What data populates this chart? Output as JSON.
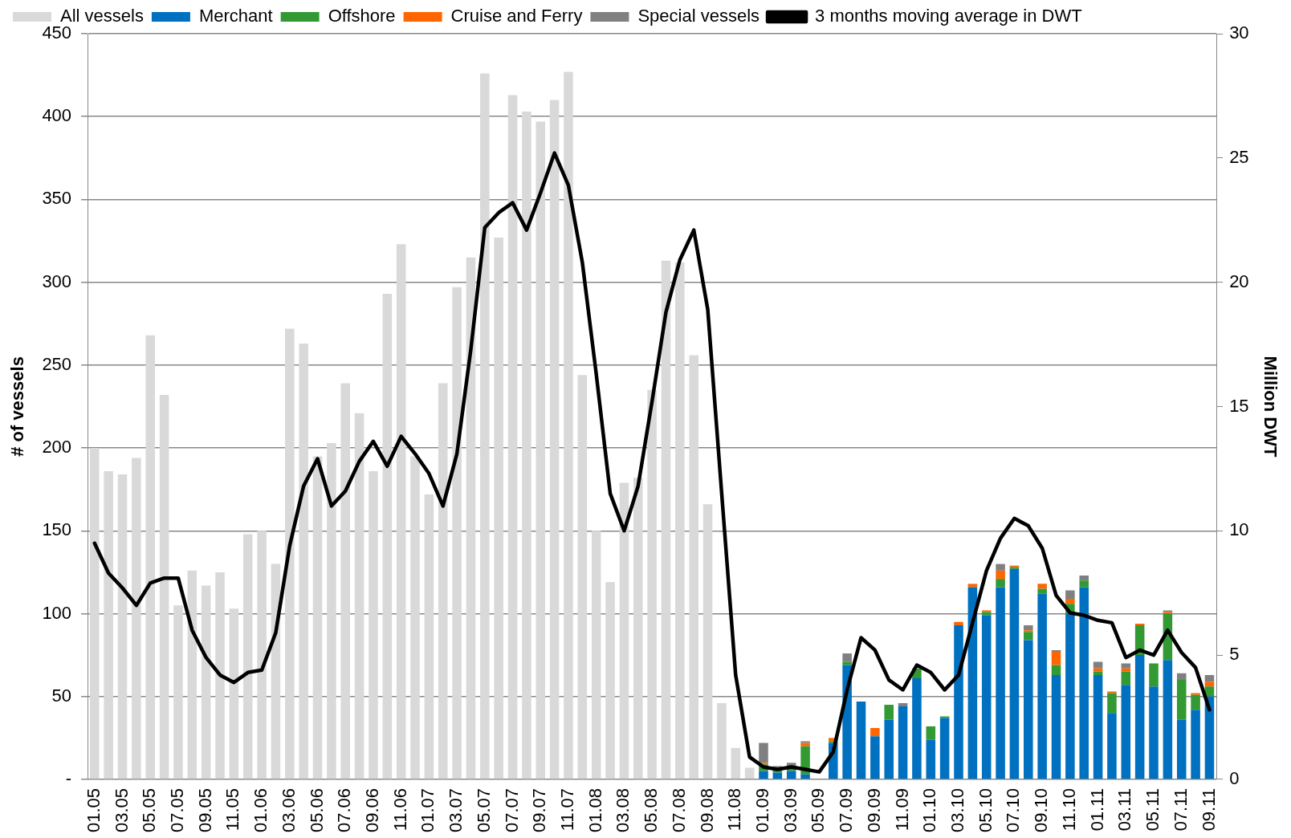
{
  "chart_data": {
    "type": "bar",
    "stacked": true,
    "ylabel": "# of vessels",
    "y2label": "Million DWT",
    "categories": [
      "01.05",
      null,
      "03.05",
      null,
      "05.05",
      null,
      "07.05",
      null,
      "09.05",
      null,
      "11.05",
      null,
      "01.06",
      null,
      "03.06",
      null,
      "05.06",
      null,
      "07.06",
      null,
      "09.06",
      null,
      "11.06",
      null,
      "01.07",
      null,
      "03.07",
      null,
      "05.07",
      null,
      "07.07",
      null,
      "09.07",
      null,
      "11.07",
      null,
      "01.08",
      null,
      "03.08",
      null,
      "05.08",
      null,
      "07.08",
      null,
      "09.08",
      null,
      "11.08",
      null,
      "01.09",
      null,
      "03.09",
      null,
      "05.09",
      null,
      "07.09",
      null,
      "09.09",
      null,
      "11.09",
      null,
      "01.10",
      null,
      "03.10",
      null,
      "05.10",
      null,
      "07.10",
      null,
      "09.10",
      null,
      "11.10",
      null,
      "01.11",
      null,
      "03.11",
      null,
      "05.11",
      null,
      "07.11",
      null,
      "09.11"
    ],
    "series": [
      {
        "name": "All vessels",
        "color": "#d9d9d9",
        "values": [
          200,
          186,
          184,
          194,
          268,
          232,
          105,
          126,
          117,
          125,
          103,
          148,
          150,
          130,
          272,
          263,
          195,
          203,
          239,
          221,
          186,
          293,
          323,
          195,
          172,
          239,
          297,
          315,
          426,
          327,
          413,
          403,
          397,
          410,
          427,
          244,
          150,
          119,
          179,
          182,
          235,
          313,
          312,
          256,
          166,
          46,
          19,
          7,
          null,
          null,
          null,
          null,
          null,
          null,
          null,
          null,
          null,
          null,
          null,
          null,
          null,
          null,
          null,
          null,
          null,
          null,
          null,
          null,
          null,
          null,
          null,
          null,
          null,
          null,
          null,
          null,
          null,
          null,
          null,
          null,
          null
        ]
      },
      {
        "name": "Merchant",
        "color": "#0070c0",
        "values": [
          null,
          null,
          null,
          null,
          null,
          null,
          null,
          null,
          null,
          null,
          null,
          null,
          null,
          null,
          null,
          null,
          null,
          null,
          null,
          null,
          null,
          null,
          null,
          null,
          null,
          null,
          null,
          null,
          null,
          null,
          null,
          null,
          null,
          null,
          null,
          null,
          null,
          null,
          null,
          null,
          null,
          null,
          null,
          null,
          null,
          null,
          null,
          null,
          5,
          4,
          5,
          3,
          0,
          22,
          69,
          47,
          26,
          36,
          44,
          61,
          24,
          37,
          93,
          116,
          99,
          116,
          127,
          84,
          112,
          63,
          100,
          116,
          63,
          40,
          57,
          75,
          56,
          72,
          36,
          42,
          50
        ]
      },
      {
        "name": "Offshore",
        "color": "#339933",
        "values": [
          null,
          null,
          null,
          null,
          null,
          null,
          null,
          null,
          null,
          null,
          null,
          null,
          null,
          null,
          null,
          null,
          null,
          null,
          null,
          null,
          null,
          null,
          null,
          null,
          null,
          null,
          null,
          null,
          null,
          null,
          null,
          null,
          null,
          null,
          null,
          null,
          null,
          null,
          null,
          null,
          null,
          null,
          null,
          null,
          null,
          null,
          null,
          null,
          4,
          2,
          2,
          17,
          0,
          1,
          2,
          0,
          0,
          9,
          0,
          6,
          8,
          1,
          0,
          0,
          2,
          5,
          1,
          5,
          3,
          6,
          6,
          4,
          2,
          12,
          8,
          18,
          14,
          28,
          24,
          9,
          6
        ]
      },
      {
        "name": "Cruise and Ferry",
        "color": "#ff6600",
        "values": [
          null,
          null,
          null,
          null,
          null,
          null,
          null,
          null,
          null,
          null,
          null,
          null,
          null,
          null,
          null,
          null,
          null,
          null,
          null,
          null,
          null,
          null,
          null,
          null,
          null,
          null,
          null,
          null,
          null,
          null,
          null,
          null,
          null,
          null,
          null,
          null,
          null,
          null,
          null,
          null,
          null,
          null,
          null,
          null,
          null,
          null,
          null,
          null,
          1,
          null,
          null,
          2,
          0,
          2,
          0,
          0,
          5,
          0,
          0,
          null,
          0,
          0,
          2,
          2,
          1,
          5,
          1,
          1,
          3,
          8,
          3,
          0,
          2,
          1,
          2,
          1,
          0,
          1,
          0,
          1,
          3
        ]
      },
      {
        "name": "Special vessels",
        "color": "#808080",
        "values": [
          null,
          null,
          null,
          null,
          null,
          null,
          null,
          null,
          null,
          null,
          null,
          null,
          null,
          null,
          null,
          null,
          null,
          null,
          null,
          null,
          null,
          null,
          null,
          null,
          null,
          null,
          null,
          null,
          null,
          null,
          null,
          null,
          null,
          null,
          null,
          null,
          null,
          null,
          null,
          null,
          null,
          null,
          null,
          null,
          null,
          null,
          null,
          null,
          12,
          2,
          3,
          1,
          0,
          0,
          5,
          0,
          0,
          0,
          2,
          0,
          0,
          0,
          0,
          0,
          0,
          4,
          0,
          3,
          0,
          1,
          5,
          3,
          4,
          0,
          3,
          0,
          0,
          1,
          4,
          0,
          4
        ]
      },
      {
        "name": "3 months moving average in DWT",
        "type": "line",
        "axis": "y2",
        "color": "#000000",
        "values": [
          9.5,
          8.3,
          7.7,
          7.0,
          7.9,
          8.1,
          8.1,
          6.0,
          4.9,
          4.2,
          3.9,
          4.3,
          4.4,
          5.9,
          9.4,
          11.8,
          12.9,
          11.0,
          11.6,
          12.8,
          13.6,
          12.6,
          13.8,
          13.1,
          12.3,
          11.0,
          13.1,
          17.3,
          22.2,
          22.8,
          23.2,
          22.1,
          23.6,
          25.2,
          23.9,
          20.8,
          16.3,
          11.5,
          10.0,
          11.8,
          15.2,
          18.8,
          20.9,
          22.1,
          18.9,
          11.5,
          4.2,
          0.9,
          0.5,
          0.4,
          0.5,
          0.4,
          0.3,
          1.1,
          3.6,
          5.7,
          5.2,
          4.0,
          3.6,
          4.6,
          4.3,
          3.6,
          4.2,
          6.3,
          8.4,
          9.7,
          10.5,
          10.2,
          9.3,
          7.4,
          6.7,
          6.6,
          6.4,
          6.3,
          4.9,
          5.2,
          5.0,
          6.0,
          5.1,
          4.5,
          2.8
        ]
      }
    ],
    "ylim": [
      0,
      450
    ],
    "yticks": [
      {
        "value": 0,
        "label": "-"
      },
      50,
      100,
      150,
      200,
      250,
      300,
      350,
      400,
      450
    ],
    "y2lim": [
      0,
      30
    ],
    "y2ticks": [
      0,
      5,
      10,
      15,
      20,
      25,
      30
    ],
    "grid": "y",
    "legend": "top",
    "marker": "none",
    "line_style": "solid"
  }
}
